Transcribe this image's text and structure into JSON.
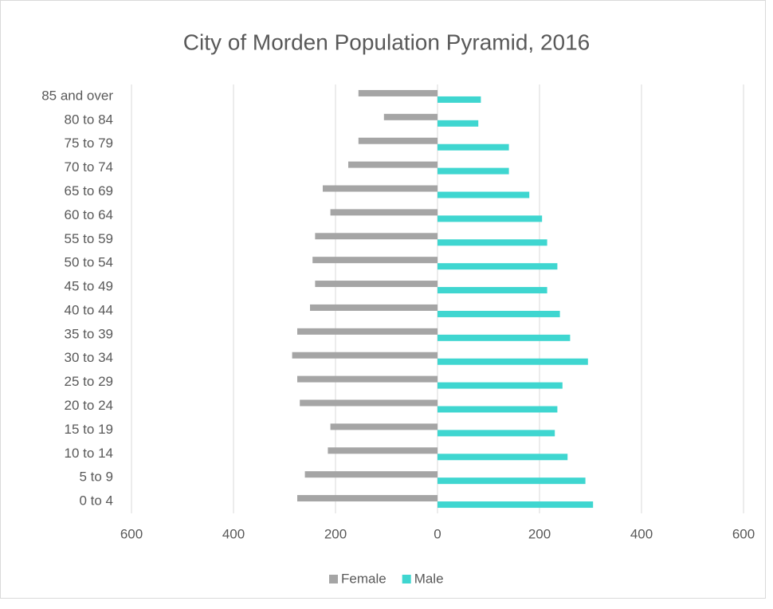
{
  "chart_data": {
    "type": "bar",
    "orientation": "horizontal",
    "title": "City of Morden Population Pyramid, 2016",
    "categories": [
      "85 and over",
      "80 to 84",
      "75 to 79",
      "70 to 74",
      "65 to 69",
      "60 to 64",
      "55 to 59",
      "50 to 54",
      "45 to 49",
      "40 to 44",
      "35 to 39",
      "30 to 34",
      "25 to 29",
      "20 to 24",
      "15 to 19",
      "10 to 14",
      "5 to 9",
      "0 to 4"
    ],
    "series": [
      {
        "name": "Female",
        "color": "#a5a5a5",
        "values": [
          -155,
          -105,
          -155,
          -175,
          -225,
          -210,
          -240,
          -245,
          -240,
          -250,
          -275,
          -285,
          -275,
          -270,
          -210,
          -215,
          -260,
          -275
        ]
      },
      {
        "name": "Male",
        "color": "#3fd6d0",
        "values": [
          85,
          80,
          140,
          140,
          180,
          205,
          215,
          235,
          215,
          240,
          260,
          295,
          245,
          235,
          230,
          255,
          290,
          305
        ]
      }
    ],
    "xlim": [
      -600,
      600
    ],
    "xticks": [
      {
        "value": -600,
        "label": "600"
      },
      {
        "value": -400,
        "label": "400"
      },
      {
        "value": -200,
        "label": "200"
      },
      0,
      200,
      400,
      600
    ],
    "grid": true,
    "legend": "bottom"
  }
}
